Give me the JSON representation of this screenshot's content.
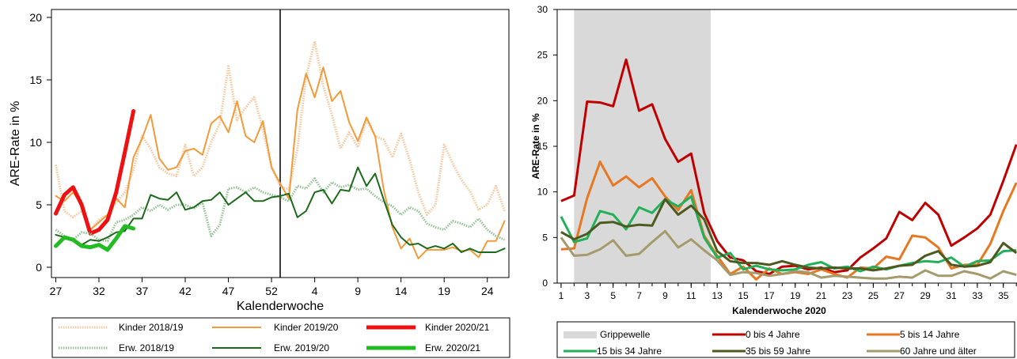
{
  "chart_data": [
    {
      "type": "line",
      "ylabel": "ARE-Rate in %",
      "xlabel": "Kalenderwoche",
      "ylim": [
        0,
        20
      ],
      "yticks": [
        "0",
        "5",
        "10",
        "15",
        "20"
      ],
      "xticks": [
        "27",
        "32",
        "37",
        "42",
        "47",
        "52",
        "4",
        "9",
        "14",
        "19",
        "24"
      ],
      "week_order": [
        27,
        28,
        29,
        30,
        31,
        32,
        33,
        34,
        35,
        36,
        37,
        38,
        39,
        40,
        41,
        42,
        43,
        44,
        45,
        46,
        47,
        48,
        49,
        50,
        51,
        52,
        53,
        1,
        2,
        3,
        4,
        5,
        6,
        7,
        8,
        9,
        10,
        11,
        12,
        13,
        14,
        15,
        16,
        17,
        18,
        19,
        20,
        21,
        22,
        23,
        24,
        25,
        26
      ],
      "year_boundary_week": 53,
      "series": [
        {
          "name": "Kinder 2018/19",
          "color": "#f5c8a0",
          "style": "dotted",
          "width": 3,
          "values": [
            8.2,
            4.5,
            4.0,
            4.5,
            3.0,
            3.8,
            4.2,
            5.2,
            6.0,
            7.8,
            10.5,
            9.5,
            8.0,
            7.5,
            7.3,
            9.8,
            7.3,
            8.0,
            10.0,
            11.5,
            16.1,
            11.8,
            12.8,
            13.6,
            11.0,
            8.0,
            6.5,
            6.2,
            9.5,
            15.2,
            18.1,
            14.5,
            12.2,
            9.5,
            10.8,
            9.6,
            11.8,
            10.5,
            10.2,
            8.8,
            10.7,
            8.6,
            6.0,
            4.2,
            5.0,
            9.8,
            8.3,
            7.0,
            6.1,
            4.6,
            5.0,
            6.5,
            4.5
          ]
        },
        {
          "name": "Kinder 2019/20",
          "color": "#f39a3a",
          "style": "solid",
          "width": 2,
          "values": [
            5.7,
            5.3,
            6.0,
            5.0,
            3.0,
            3.6,
            4.2,
            5.5,
            4.8,
            8.8,
            10.3,
            12.2,
            8.7,
            7.8,
            8.0,
            9.3,
            9.5,
            9.0,
            11.5,
            12.1,
            10.8,
            13.3,
            10.5,
            10.0,
            11.7,
            8.0,
            6.7,
            5.5,
            12.6,
            15.5,
            13.6,
            16.0,
            13.3,
            14.1,
            11.6,
            10.1,
            12.0,
            10.5,
            6.2,
            3.2,
            1.5,
            2.3,
            0.7,
            1.4,
            1.4,
            1.4,
            1.6,
            1.3,
            1.4,
            0.8,
            2.1,
            2.1,
            3.7
          ]
        },
        {
          "name": "Kinder 2020/21",
          "color": "#ee1111",
          "style": "solid",
          "width": 5,
          "values": [
            4.3,
            5.8,
            6.4,
            5.0,
            2.7,
            3.0,
            3.8,
            6.0,
            9.2,
            12.5
          ]
        },
        {
          "name": "Erw. 2018/19",
          "color": "#93c393",
          "style": "dotted",
          "width": 3,
          "values": [
            3.0,
            2.5,
            2.2,
            2.8,
            2.7,
            2.2,
            2.1,
            3.6,
            3.8,
            4.2,
            4.8,
            4.5,
            5.0,
            4.6,
            5.0,
            5.0,
            4.7,
            5.2,
            2.5,
            3.4,
            6.3,
            6.4,
            6.0,
            6.4,
            6.0,
            5.8,
            5.6,
            5.3,
            6.5,
            6.3,
            7.1,
            6.0,
            6.8,
            6.4,
            6.6,
            6.2,
            6.3,
            5.7,
            5.2,
            4.9,
            4.2,
            4.8,
            4.5,
            3.5,
            3.2,
            3.0,
            3.7,
            3.5,
            3.2,
            3.9,
            3.0,
            2.5,
            2.2
          ]
        },
        {
          "name": "Erw. 2019/20",
          "color": "#1d6a1d",
          "style": "solid",
          "width": 2,
          "values": [
            2.6,
            2.4,
            2.3,
            1.8,
            2.2,
            2.1,
            2.4,
            2.8,
            2.9,
            3.9,
            3.9,
            5.8,
            5.5,
            5.4,
            6.0,
            4.6,
            4.8,
            5.3,
            5.4,
            6.0,
            5.0,
            5.5,
            6.0,
            5.3,
            5.3,
            5.6,
            5.7,
            5.9,
            4.0,
            4.5,
            6.0,
            6.2,
            5.1,
            6.2,
            6.1,
            8.0,
            6.5,
            7.5,
            5.4,
            3.4,
            2.4,
            1.8,
            1.9,
            1.5,
            1.7,
            1.5,
            1.9,
            1.2,
            1.5,
            1.2,
            1.2,
            1.2,
            1.5
          ]
        },
        {
          "name": "Erw. 2020/21",
          "color": "#22bb22",
          "style": "solid",
          "width": 5,
          "values": [
            1.7,
            2.4,
            2.2,
            1.7,
            1.6,
            1.8,
            1.4,
            2.3,
            3.3,
            3.1
          ]
        }
      ]
    },
    {
      "type": "line",
      "ylabel": "ARE-Rate in %",
      "xlabel": "Kalenderwoche 2020",
      "ylim": [
        0,
        30
      ],
      "xlim": [
        1,
        37
      ],
      "yticks": [
        "0",
        "5",
        "10",
        "15",
        "20",
        "25",
        "30"
      ],
      "xticks": [
        "1",
        "3",
        "5",
        "7",
        "9",
        "11",
        "13",
        "15",
        "17",
        "19",
        "21",
        "23",
        "25",
        "27",
        "29",
        "31",
        "33",
        "35"
      ],
      "shaded_band": {
        "label": "Grippewelle",
        "from_week": 2,
        "to_week": 12.5,
        "color": "#d9d9d9"
      },
      "series": [
        {
          "name": "0 bis 4 Jahre",
          "color": "#c00000",
          "width": 3,
          "values": [
            9.0,
            9.6,
            19.9,
            19.8,
            19.4,
            24.5,
            18.9,
            19.6,
            15.8,
            13.3,
            14.2,
            7.7,
            4.6,
            2.8,
            2.5,
            1.3,
            1.0,
            1.8,
            1.9,
            1.5,
            1.7,
            1.2,
            1.4,
            2.8,
            3.8,
            4.9,
            7.8,
            6.9,
            8.8,
            7.5,
            4.1,
            5.0,
            6.0,
            7.5,
            11.2,
            15.2
          ]
        },
        {
          "name": "5 bis 14 Jahre",
          "color": "#e87722",
          "width": 3,
          "values": [
            3.7,
            3.8,
            9.3,
            13.3,
            10.7,
            11.7,
            10.5,
            11.5,
            9.5,
            8.0,
            10.2,
            5.2,
            3.0,
            1.0,
            1.8,
            0.4,
            1.6,
            1.0,
            1.2,
            1.0,
            1.5,
            1.0,
            0.6,
            1.7,
            1.6,
            2.9,
            2.6,
            5.2,
            5.0,
            3.9,
            1.6,
            2.0,
            2.0,
            4.3,
            7.9,
            11.0
          ]
        },
        {
          "name": "15 bis 34 Jahre",
          "color": "#22b15a",
          "width": 3,
          "values": [
            7.3,
            4.5,
            4.9,
            7.9,
            7.5,
            5.9,
            8.3,
            7.7,
            9.2,
            8.4,
            9.5,
            5.0,
            2.8,
            3.3,
            1.5,
            1.9,
            1.5,
            1.4,
            1.5,
            2.0,
            2.3,
            1.6,
            1.8,
            1.3,
            1.8,
            1.5,
            1.9,
            2.2,
            2.4,
            2.3,
            2.8,
            1.8,
            2.4,
            2.5,
            3.5,
            3.6
          ]
        },
        {
          "name": "35 bis 59 Jahre",
          "color": "#4d5a1f",
          "width": 3,
          "values": [
            5.6,
            4.8,
            5.4,
            6.6,
            6.7,
            6.2,
            6.4,
            6.3,
            9.2,
            7.5,
            8.5,
            7.0,
            3.5,
            2.4,
            2.2,
            2.2,
            2.0,
            2.4,
            2.0,
            1.7,
            1.6,
            1.7,
            1.6,
            1.6,
            1.4,
            1.6,
            1.9,
            2.0,
            3.0,
            3.5,
            2.0,
            1.8,
            1.9,
            2.3,
            4.4,
            3.3
          ]
        },
        {
          "name": "60 Jahre und älter",
          "color": "#a49a6c",
          "width": 3,
          "values": [
            5.0,
            3.0,
            3.1,
            3.7,
            4.7,
            3.0,
            3.2,
            4.5,
            5.7,
            3.9,
            4.8,
            3.6,
            2.5,
            0.9,
            1.2,
            1.1,
            0.8,
            1.0,
            1.3,
            1.2,
            0.6,
            0.8,
            0.7,
            0.6,
            0.5,
            0.5,
            0.7,
            0.6,
            1.4,
            0.8,
            0.8,
            1.3,
            1.0,
            0.5,
            1.3,
            0.9
          ]
        }
      ]
    }
  ]
}
